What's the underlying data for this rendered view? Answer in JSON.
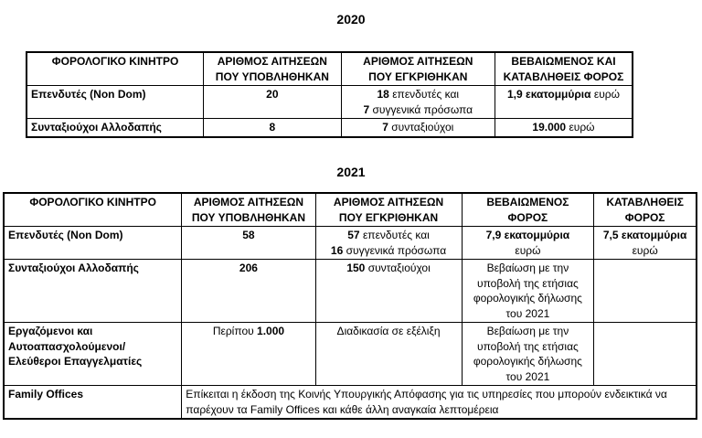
{
  "document": {
    "background": "#ffffff",
    "text_color": "#000000",
    "border_color": "#000000"
  },
  "tables": [
    {
      "title": "2020",
      "column_widths_pct": [
        29.2,
        22.7,
        25.4,
        22.7
      ],
      "headers": [
        {
          "lines": [
            "ΦΟΡΟΛΟΓΙΚΟ ΚΙΝΗΤΡΟ"
          ]
        },
        {
          "lines": [
            "ΑΡΙΘΜΟΣ ΑΙΤΗΣΕΩΝ",
            "ΠΟΥ ΥΠΟΒΛΗΘΗΚΑΝ"
          ]
        },
        {
          "lines": [
            "ΑΡΙΘΜΟΣ ΑΙΤΗΣΕΩΝ",
            "ΠΟΥ ΕΓΚΡΙΘΗΚΑΝ"
          ]
        },
        {
          "lines": [
            "ΒΕΒΑΙΩΜΕΝΟΣ ΚΑΙ",
            "ΚΑΤΑΒΛΗΘΕΙΣ ΦΟΡΟΣ"
          ]
        }
      ],
      "rows": [
        {
          "cells": [
            {
              "align": "left",
              "lines": [
                [
                  {
                    "t": "Επενδυτές (Non Dom)",
                    "b": true
                  }
                ]
              ]
            },
            {
              "align": "center",
              "lines": [
                [
                  {
                    "t": "20",
                    "b": true
                  }
                ]
              ]
            },
            {
              "align": "center",
              "lines": [
                [
                  {
                    "t": "18",
                    "b": true
                  },
                  {
                    "t": " επενδυτές και"
                  }
                ],
                [
                  {
                    "t": "7",
                    "b": true
                  },
                  {
                    "t": " συγγενικά πρόσωπα"
                  }
                ]
              ]
            },
            {
              "align": "center",
              "lines": [
                [
                  {
                    "t": "1,9 εκατομμύρια",
                    "b": true
                  },
                  {
                    "t": " ευρώ"
                  }
                ]
              ]
            }
          ]
        },
        {
          "cells": [
            {
              "align": "left",
              "lines": [
                [
                  {
                    "t": "Συνταξιούχοι Αλλοδαπής",
                    "b": true
                  }
                ]
              ]
            },
            {
              "align": "center",
              "lines": [
                [
                  {
                    "t": "8",
                    "b": true
                  }
                ]
              ]
            },
            {
              "align": "center",
              "lines": [
                [
                  {
                    "t": "7",
                    "b": true
                  },
                  {
                    "t": " συνταξιούχοι"
                  }
                ]
              ]
            },
            {
              "align": "center",
              "lines": [
                [
                  {
                    "t": "19.000",
                    "b": true
                  },
                  {
                    "t": " ευρώ"
                  }
                ]
              ]
            }
          ]
        }
      ]
    },
    {
      "title": "2021",
      "column_widths_pct": [
        25.7,
        19.3,
        21.1,
        19.1,
        14.8
      ],
      "headers": [
        {
          "lines": [
            "ΦΟΡΟΛΟΓΙΚΟ ΚΙΝΗΤΡΟ"
          ]
        },
        {
          "lines": [
            "ΑΡΙΘΜΟΣ ΑΙΤΗΣΕΩΝ",
            "ΠΟΥ ΥΠΟΒΛΗΘΗΚΑΝ"
          ]
        },
        {
          "lines": [
            "ΑΡΙΘΜΟΣ ΑΙΤΗΣΕΩΝ",
            "ΠΟΥ ΕΓΚΡΙΘΗΚΑΝ"
          ]
        },
        {
          "lines": [
            "ΒΕΒΑΙΩΜΕΝΟΣ",
            "ΦΟΡΟΣ"
          ]
        },
        {
          "lines": [
            "ΚΑΤΑΒΛΗΘΕΙΣ",
            "ΦΟΡΟΣ"
          ]
        }
      ],
      "rows": [
        {
          "cells": [
            {
              "align": "left",
              "lines": [
                [
                  {
                    "t": "Επενδυτές (Non Dom)",
                    "b": true
                  }
                ]
              ]
            },
            {
              "align": "center",
              "lines": [
                [
                  {
                    "t": "58",
                    "b": true
                  }
                ]
              ]
            },
            {
              "align": "center",
              "lines": [
                [
                  {
                    "t": "57",
                    "b": true
                  },
                  {
                    "t": " επενδυτές και"
                  }
                ],
                [
                  {
                    "t": "16",
                    "b": true
                  },
                  {
                    "t": " συγγενικά πρόσωπα"
                  }
                ]
              ]
            },
            {
              "align": "center",
              "lines": [
                [
                  {
                    "t": "7,9 εκατομμύρια",
                    "b": true
                  }
                ],
                [
                  {
                    "t": "ευρώ"
                  }
                ]
              ]
            },
            {
              "align": "center",
              "lines": [
                [
                  {
                    "t": "7,5 εκατομμύρια",
                    "b": true
                  }
                ],
                [
                  {
                    "t": "ευρώ"
                  }
                ]
              ]
            }
          ]
        },
        {
          "cells": [
            {
              "align": "left",
              "lines": [
                [
                  {
                    "t": "Συνταξιούχοι Αλλοδαπής",
                    "b": true
                  }
                ]
              ]
            },
            {
              "align": "center",
              "lines": [
                [
                  {
                    "t": "206",
                    "b": true
                  }
                ]
              ]
            },
            {
              "align": "center",
              "lines": [
                [
                  {
                    "t": "150",
                    "b": true
                  },
                  {
                    "t": " συνταξιούχοι"
                  }
                ]
              ]
            },
            {
              "align": "center",
              "lines": [
                [
                  {
                    "t": "Βεβαίωση με την"
                  }
                ],
                [
                  {
                    "t": "υποβολή της ετήσιας"
                  }
                ],
                [
                  {
                    "t": "φορολογικής δήλωσης"
                  }
                ],
                [
                  {
                    "t": "του 2021"
                  }
                ]
              ]
            },
            {
              "align": "center",
              "lines": []
            }
          ]
        },
        {
          "cells": [
            {
              "align": "left",
              "lines": [
                [
                  {
                    "t": "Εργαζόμενοι και",
                    "b": true
                  }
                ],
                [
                  {
                    "t": "Αυτοαπασχολούμενοι/",
                    "b": true
                  }
                ],
                [
                  {
                    "t": "Ελεύθεροι Επαγγελματίες",
                    "b": true
                  }
                ]
              ]
            },
            {
              "align": "center",
              "lines": [
                [
                  {
                    "t": "Περίπου "
                  },
                  {
                    "t": "1.000",
                    "b": true
                  }
                ]
              ]
            },
            {
              "align": "center",
              "lines": [
                [
                  {
                    "t": "Διαδικασία σε εξέλιξη"
                  }
                ]
              ]
            },
            {
              "align": "center",
              "lines": [
                [
                  {
                    "t": "Βεβαίωση με την"
                  }
                ],
                [
                  {
                    "t": "υποβολή της ετήσιας"
                  }
                ],
                [
                  {
                    "t": "φορολογικής δήλωσης"
                  }
                ],
                [
                  {
                    "t": "του 2021"
                  }
                ]
              ]
            },
            {
              "align": "center",
              "lines": []
            }
          ]
        },
        {
          "cells": [
            {
              "align": "left",
              "lines": [
                [
                  {
                    "t": "Family Offices",
                    "b": true
                  }
                ]
              ]
            },
            {
              "align": "left",
              "colspan": 4,
              "lines": [
                [
                  {
                    "t": "Επίκειται η έκδοση της Κοινής Υπουργικής Απόφασης για τις υπηρεσίες που μπορούν ενδεικτικά να παρέχουν τα Family Offices και κάθε άλλη αναγκαία λεπτομέρεια"
                  }
                ]
              ]
            }
          ]
        }
      ]
    }
  ]
}
